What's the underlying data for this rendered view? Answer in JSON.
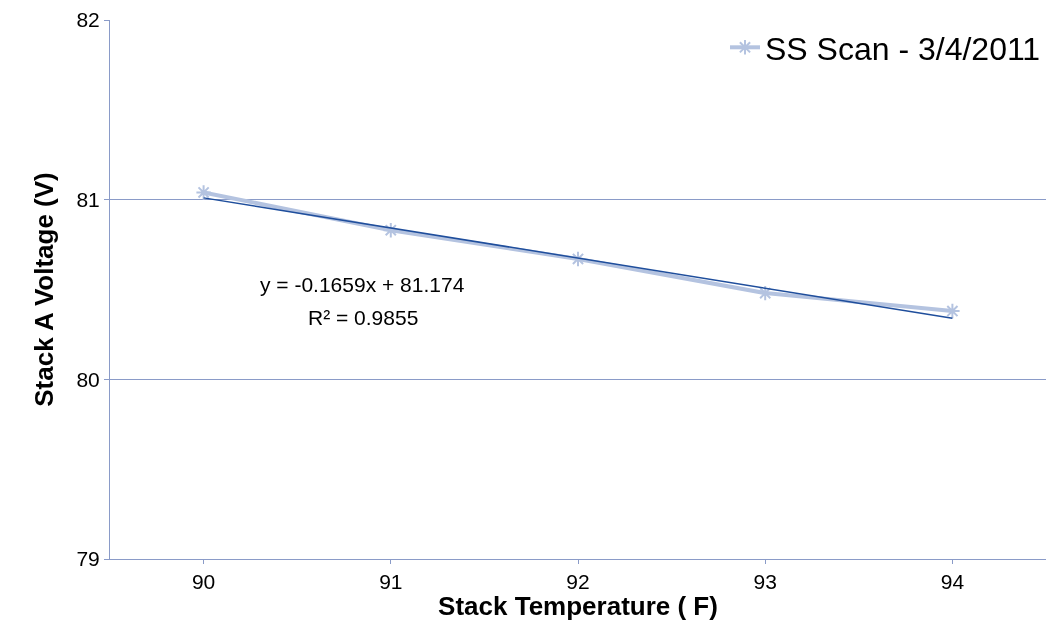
{
  "chart_data": {
    "type": "line",
    "xlabel": "Stack Temperature ( F)",
    "ylabel": "Stack A Voltage (V)",
    "x": [
      90,
      91,
      92,
      93,
      94
    ],
    "xlim": [
      89.5,
      94.5
    ],
    "xticks": [
      90,
      91,
      92,
      93,
      94
    ],
    "ylim": [
      79,
      82
    ],
    "yticks": [
      79,
      80,
      81,
      82
    ],
    "series": [
      {
        "name": "SS Scan - 3/4/2011",
        "color": "#b4c3e0",
        "values": [
          81.04,
          80.83,
          80.67,
          80.48,
          80.38
        ],
        "marker": "cross"
      },
      {
        "type": "line",
        "color": "#1f4e9c",
        "x": [
          90,
          94
        ],
        "values": [
          81.01,
          80.34
        ],
        "marker": "none"
      }
    ],
    "annotations": [
      "y = -0.1659x + 81.174",
      "R² = 0.9855"
    ],
    "grid": "y",
    "legend": "top right"
  }
}
